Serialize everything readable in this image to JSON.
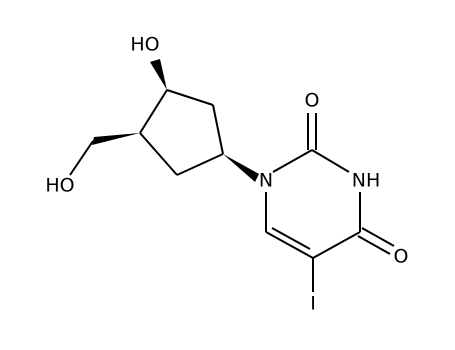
{
  "atoms": {
    "hydroxyl_top": "HO",
    "hydroxyl_left": "HO",
    "oxygen_c2": "O",
    "nh": "NH",
    "n1": "N",
    "oxygen_c4": "O",
    "iodine": "I"
  }
}
